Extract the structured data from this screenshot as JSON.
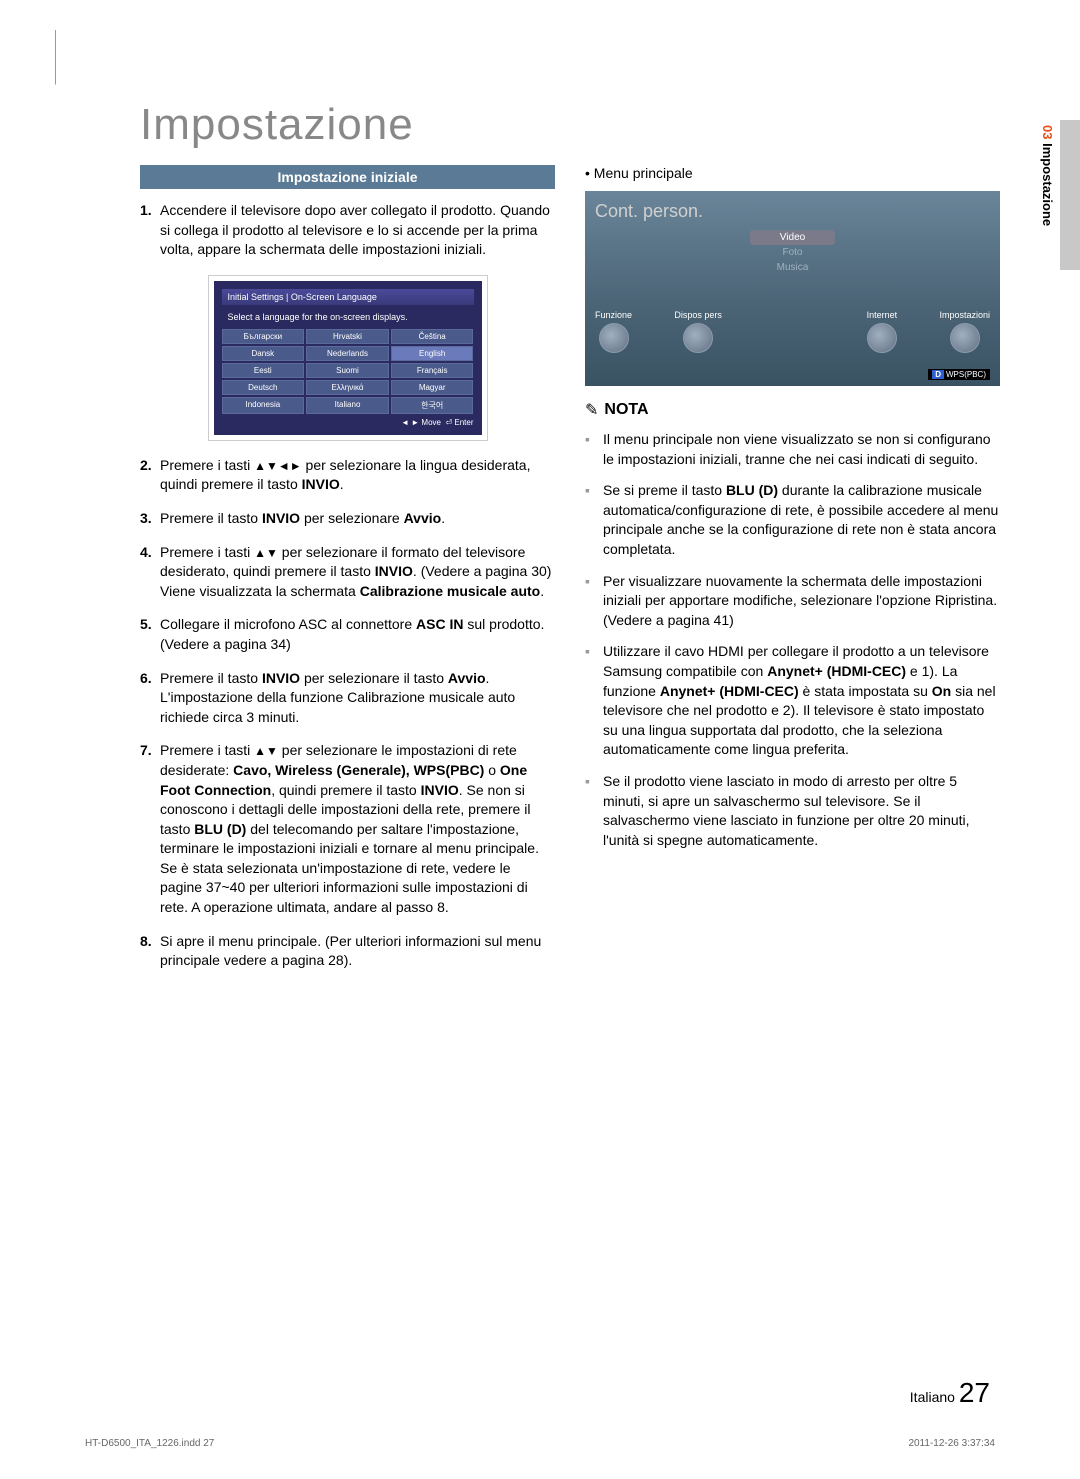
{
  "page": {
    "title": "Impostazione",
    "section_num": "03",
    "section_name": "Impostazione",
    "footer_lang": "Italiano",
    "footer_page": "27",
    "print_file": "HT-D6500_ITA_1226.indd   27",
    "print_date": "2011-12-26   3:37:34"
  },
  "left": {
    "header": "Impostazione iniziale",
    "item1_num": "1.",
    "item1": "Accendere il televisore dopo aver collegato il prodotto. Quando si collega il prodotto al televisore e lo si accende per la prima volta, appare la schermata delle impostazioni iniziali.",
    "screenshot": {
      "title": "Initial Settings | On-Screen Language",
      "subtitle": "Select a language for the on-screen displays.",
      "langs": [
        "Български",
        "Hrvatski",
        "Čeština",
        "Dansk",
        "Nederlands",
        "English",
        "Eesti",
        "Suomi",
        "Français",
        "Deutsch",
        "Ελληνικά",
        "Magyar",
        "Indonesia",
        "Italiano",
        "한국어"
      ],
      "selected_index": 5,
      "footer_move": "Move",
      "footer_enter": "Enter"
    },
    "item2_num": "2.",
    "item2_a": "Premere i tasti ",
    "item2_arrows": "▲▼◄►",
    "item2_b": " per selezionare la lingua desiderata, quindi premere il tasto ",
    "item2_bold": "INVIO",
    "item2_c": ".",
    "item3_num": "3.",
    "item3_a": "Premere il tasto ",
    "item3_bold1": "INVIO",
    "item3_b": " per selezionare ",
    "item3_bold2": "Avvio",
    "item3_c": ".",
    "item4_num": "4.",
    "item4_a": "Premere i tasti ",
    "item4_arrows": "▲▼",
    "item4_b": " per selezionare il formato del televisore desiderato, quindi premere il tasto ",
    "item4_bold1": "INVIO",
    "item4_c": ". (Vedere a pagina 30)\nViene visualizzata la schermata ",
    "item4_bold2": "Calibrazione musicale auto",
    "item4_d": ".",
    "item5_num": "5.",
    "item5_a": "Collegare il microfono ASC al connettore ",
    "item5_bold": "ASC IN",
    "item5_b": " sul prodotto. (Vedere a pagina 34)",
    "item6_num": "6.",
    "item6_a": "Premere il tasto ",
    "item6_bold1": "INVIO",
    "item6_b": " per selezionare il tasto ",
    "item6_bold2": "Avvio",
    "item6_c": ".\nL'impostazione della funzione Calibrazione musicale auto richiede circa 3 minuti.",
    "item7_num": "7.",
    "item7_a": "Premere i tasti ",
    "item7_arrows": "▲▼",
    "item7_b": " per selezionare le impostazioni di rete desiderate: ",
    "item7_bold1": "Cavo, Wireless (Generale), WPS(PBC)",
    "item7_c": " o ",
    "item7_bold2": "One Foot Connection",
    "item7_d": ", quindi premere il tasto ",
    "item7_bold3": "INVIO",
    "item7_e": ". Se non si conoscono i dettagli delle impostazioni della rete, premere il tasto ",
    "item7_bold4": "BLU (D)",
    "item7_f": " del telecomando per saltare l'impostazione, terminare le impostazioni iniziali e tornare al menu principale.\nSe è stata selezionata un'impostazione di rete, vedere le pagine 37~40 per ulteriori informazioni sulle impostazioni di rete. A operazione ultimata, andare al passo 8.",
    "item8_num": "8.",
    "item8": "Si apre il menu principale. (Per ulteriori informazioni sul menu principale vedere a pagina 28)."
  },
  "right": {
    "bullet1": "• Menu principale",
    "menu": {
      "title": "Cont. person.",
      "items": [
        "Video",
        "Foto",
        "Musica"
      ],
      "bottom": [
        "Funzione",
        "Dispos pers",
        "",
        "Internet",
        "Impostazioni"
      ],
      "wps_d": "D",
      "wps": "WPS(PBC)"
    },
    "nota_icon": "✎",
    "nota": "NOTA",
    "n1": "Il menu principale non viene visualizzato se non si configurano le impostazioni iniziali, tranne che nei casi indicati di seguito.",
    "n2_a": "Se si preme il tasto ",
    "n2_bold": "BLU (D)",
    "n2_b": " durante la calibrazione musicale automatica/configurazione di rete, è possibile accedere al menu principale anche se la configurazione di rete non è stata ancora completata.",
    "n3": "Per visualizzare nuovamente la schermata delle impostazioni iniziali per apportare modifiche, selezionare l'opzione Ripristina. (Vedere a pagina 41)",
    "n4_a": "Utilizzare il cavo HDMI per collegare il prodotto a un televisore Samsung compatibile con ",
    "n4_bold1": "Anynet+ (HDMI-CEC)",
    "n4_b": " e 1). La funzione ",
    "n4_bold2": "Anynet+ (HDMI-CEC)",
    "n4_c": " è stata impostata su ",
    "n4_bold3": "On",
    "n4_d": " sia nel televisore che nel prodotto e 2). Il televisore è stato impostato su una lingua supportata dal prodotto, che la seleziona automaticamente come lingua preferita.",
    "n5": "Se il prodotto viene lasciato in modo di arresto per oltre 5 minuti, si apre un salvaschermo sul televisore. Se il salvaschermo viene lasciato in funzione per oltre 20 minuti, l'unità si spegne automaticamente."
  }
}
